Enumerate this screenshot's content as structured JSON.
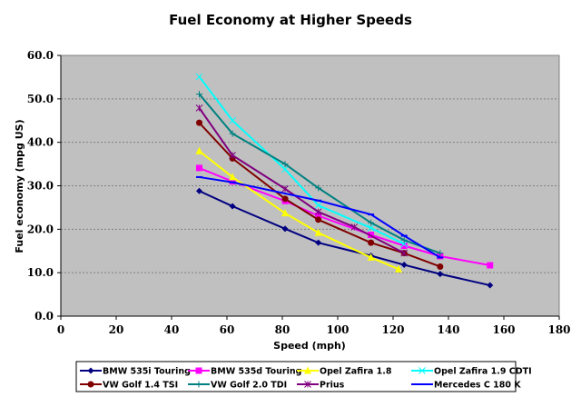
{
  "chart_data": {
    "type": "line",
    "title": "Fuel Economy at Higher Speeds",
    "xlabel": "Speed (mph)",
    "ylabel": "Fuel economy (mpg US)",
    "xlim": [
      0,
      180
    ],
    "ylim": [
      0,
      60
    ],
    "xticks": [
      0,
      20,
      40,
      60,
      80,
      100,
      120,
      140,
      160,
      180
    ],
    "xtick_labels": [
      "0",
      "20",
      "40",
      "60",
      "80",
      "100",
      "120",
      "140",
      "160",
      "180"
    ],
    "yticks": [
      0,
      10,
      20,
      30,
      40,
      50,
      60
    ],
    "ytick_labels": [
      "0.0",
      "10.0",
      "20.0",
      "30.0",
      "40.0",
      "50.0",
      "60.0"
    ],
    "grid": "horizontal dashed",
    "legend_position": "bottom",
    "plot_background": "#c0c0c0",
    "series": [
      {
        "name": "BMW 535i Touring",
        "color": "#000080",
        "marker": "diamond",
        "x": [
          50,
          62,
          81,
          93,
          112,
          124,
          137,
          155
        ],
        "y": [
          28.8,
          25.3,
          20.1,
          16.9,
          13.9,
          11.8,
          9.7,
          7.1
        ]
      },
      {
        "name": "BMW 535d Touring",
        "color": "#ff00ff",
        "marker": "square",
        "x": [
          50,
          62,
          81,
          93,
          112,
          124,
          137,
          155
        ],
        "y": [
          34.1,
          31.0,
          26.5,
          23.1,
          18.7,
          16.2,
          13.8,
          11.7
        ]
      },
      {
        "name": "Opel Zafira 1.8",
        "color": "#ffff00",
        "marker": "triangle",
        "x": [
          50,
          62,
          81,
          93,
          112,
          122
        ],
        "y": [
          38.0,
          32.0,
          23.7,
          19.2,
          13.5,
          10.8
        ]
      },
      {
        "name": "Opel Zafira 1.9 CDTI",
        "color": "#00ffff",
        "marker": "x",
        "x": [
          50,
          62,
          81,
          93,
          112,
          124
        ],
        "y": [
          55.1,
          45.0,
          33.8,
          25.5,
          20.3,
          16.6
        ]
      },
      {
        "name": "VW Golf 1.4 TSI",
        "color": "#800000",
        "marker": "circle",
        "x": [
          50,
          62,
          81,
          93,
          112,
          124,
          137
        ],
        "y": [
          44.5,
          36.3,
          27.0,
          22.2,
          16.9,
          14.5,
          11.4
        ]
      },
      {
        "name": "VW Golf 2.0 TDI",
        "color": "#008080",
        "marker": "plus",
        "x": [
          50,
          62,
          81,
          93,
          112,
          124,
          137
        ],
        "y": [
          51.1,
          42.0,
          35.0,
          29.5,
          21.5,
          17.5,
          14.5
        ]
      },
      {
        "name": "Prius",
        "color": "#800080",
        "marker": "star",
        "x": [
          50,
          62,
          81,
          93,
          106,
          124
        ],
        "y": [
          47.9,
          37.0,
          29.3,
          24.0,
          20.5,
          14.5
        ]
      },
      {
        "name": "Mercedes C 180 K",
        "color": "#0000ff",
        "marker": "dash",
        "x": [
          50,
          62,
          93,
          112,
          124,
          137
        ],
        "y": [
          32.0,
          30.8,
          26.6,
          23.4,
          18.5,
          13.5
        ]
      }
    ]
  }
}
